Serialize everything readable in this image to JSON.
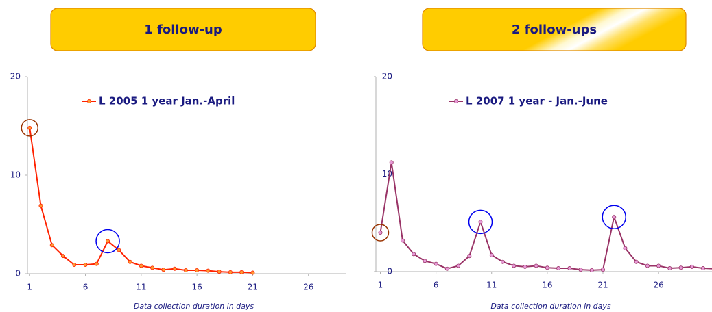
{
  "chart_data": [
    {
      "type": "line",
      "title": "1 follow-up",
      "x": [
        1,
        2,
        3,
        4,
        5,
        6,
        7,
        8,
        9,
        10,
        11,
        12,
        13,
        14,
        15,
        16,
        17,
        18,
        19,
        20,
        21
      ],
      "series": [
        {
          "name": "L 2005 1 year Jan.-April",
          "color": "#ff2200",
          "marker_color": "#ff9933",
          "values": [
            14.8,
            6.9,
            2.9,
            1.8,
            0.9,
            0.9,
            1.0,
            3.3,
            2.4,
            1.2,
            0.8,
            0.6,
            0.4,
            0.5,
            0.35,
            0.35,
            0.3,
            0.2,
            0.15,
            0.15,
            0.1
          ]
        }
      ],
      "xlim": [
        0.8,
        29.4
      ],
      "xticks": [
        1,
        6,
        11,
        16,
        21,
        26
      ],
      "ylim": [
        0,
        20
      ],
      "yticks": [
        0,
        10,
        20
      ],
      "x_label": "Data collection duration in days",
      "highlights": [
        {
          "index": 0,
          "color": "#993300"
        },
        {
          "index": 7,
          "color": "#0000ee"
        }
      ]
    },
    {
      "type": "line",
      "title": "2 follow-ups",
      "x": [
        1,
        2,
        3,
        4,
        5,
        6,
        7,
        8,
        9,
        10,
        11,
        12,
        13,
        14,
        15,
        16,
        17,
        18,
        19,
        20,
        21,
        22,
        23,
        24,
        25,
        26,
        27,
        28,
        29,
        30,
        31
      ],
      "series": [
        {
          "name": "L 2007 1 year - Jan.-June",
          "color": "#993366",
          "marker_color": "#e69ad6",
          "values": [
            4.0,
            11.2,
            3.2,
            1.8,
            1.1,
            0.8,
            0.3,
            0.6,
            1.6,
            5.1,
            1.7,
            1.0,
            0.6,
            0.5,
            0.6,
            0.4,
            0.35,
            0.35,
            0.2,
            0.15,
            0.2,
            5.6,
            2.4,
            1.0,
            0.6,
            0.6,
            0.35,
            0.4,
            0.5,
            0.35,
            0.3
          ]
        }
      ],
      "xlim": [
        0.6,
        30.8
      ],
      "xticks": [
        1,
        6,
        11,
        16,
        21,
        26
      ],
      "ylim": [
        0,
        20
      ],
      "yticks": [
        0,
        10,
        20
      ],
      "x_label": "Data collection duration in days",
      "highlights": [
        {
          "index": 0,
          "color": "#993300"
        },
        {
          "index": 9,
          "color": "#0000ee"
        },
        {
          "index": 21,
          "color": "#0000ee"
        }
      ]
    }
  ]
}
